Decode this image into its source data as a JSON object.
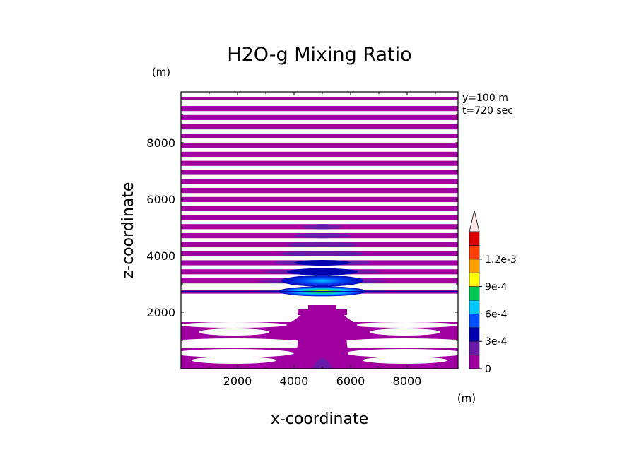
{
  "chart_data": {
    "type": "heatmap",
    "title": "H2O-g Mixing Ratio",
    "xlabel": "x-coordinate",
    "ylabel": "z-coordinate",
    "x_unit": "(m)",
    "y_unit": "(m)",
    "annotations": [
      "y=100 m",
      "t=720 sec"
    ],
    "xlim": [
      0,
      9800
    ],
    "ylim": [
      0,
      9800
    ],
    "x_ticks": [
      2000,
      4000,
      6000,
      8000
    ],
    "y_ticks": [
      2000,
      4000,
      6000,
      8000
    ],
    "x_tick_labels": [
      "2000",
      "4000",
      "6000",
      "8000"
    ],
    "y_tick_labels": [
      "2000",
      "4000",
      "6000",
      "8000"
    ],
    "colorbar": {
      "levels": [
        0,
        0.00015,
        0.0003,
        0.00045,
        0.0006,
        0.00075,
        0.0009,
        0.00105,
        0.0012,
        0.00135
      ],
      "colors": [
        "#ffffff",
        "#a000a0",
        "#6a1aa8",
        "#0000b0",
        "#0050ff",
        "#00c8ff",
        "#00c850",
        "#ffff00",
        "#ffa000",
        "#ff4000",
        "#e00000",
        "#ff9090",
        "#ffe6e6"
      ],
      "tick_labels": [
        "0",
        "3e-4",
        "6e-4",
        "9e-4",
        "1.2e-3"
      ],
      "tick_values": [
        0,
        0.0003,
        0.0006,
        0.0009,
        0.0012
      ],
      "extend": "max"
    },
    "moist_bands_z": [
      [
        9500,
        9620
      ],
      [
        9120,
        9300
      ],
      [
        8800,
        8980
      ],
      [
        8470,
        8650
      ],
      [
        8150,
        8320
      ],
      [
        7820,
        8000
      ],
      [
        7500,
        7680
      ],
      [
        7180,
        7360
      ],
      [
        6860,
        7040
      ],
      [
        6540,
        6720
      ],
      [
        6220,
        6400
      ],
      [
        5900,
        6080
      ],
      [
        5580,
        5760
      ],
      [
        5260,
        5440
      ],
      [
        4940,
        5120
      ],
      [
        4620,
        4800
      ],
      [
        4300,
        4480
      ],
      [
        3980,
        4160
      ],
      [
        3660,
        3840
      ],
      [
        3340,
        3520
      ],
      [
        3020,
        3200
      ],
      [
        2660,
        2800
      ]
    ],
    "lower_moist_z": [
      [
        1000,
        1650
      ],
      [
        0,
        750
      ]
    ],
    "peak": {
      "x": 5000,
      "z": 2750,
      "value": 0.0006
    }
  }
}
